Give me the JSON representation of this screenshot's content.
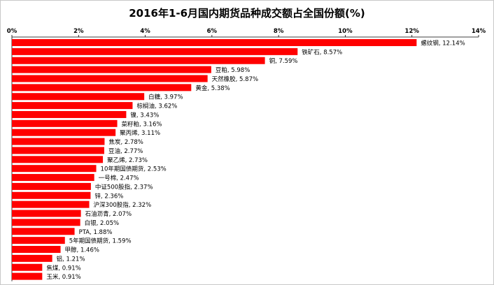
{
  "chart_data": {
    "type": "bar",
    "orientation": "horizontal",
    "title": "2016年1-6月国内期货品种成交额占全国份额(%)",
    "xlim": [
      0,
      14
    ],
    "x_ticks": [
      "0%",
      "2%",
      "4%",
      "6%",
      "8%",
      "10%",
      "12%",
      "14%"
    ],
    "x_axis_position": "top",
    "grid": false,
    "color": "#ff0000",
    "categories": [
      "螺纹钢",
      "铁矿石",
      "铜",
      "豆粕",
      "天然橡胶",
      "黄金",
      "白糖",
      "棕榈油",
      "镍",
      "菜籽粕",
      "聚丙烯",
      "焦炭",
      "豆油",
      "聚乙烯",
      "10年期国债期货",
      "一号棉",
      "中证500股指",
      "锌",
      "沪深300股指",
      "石油沥青",
      "白银",
      "PTA",
      "5年期国债期货",
      "甲醇",
      "铝",
      "焦煤",
      "玉米"
    ],
    "values": [
      12.14,
      8.57,
      7.59,
      5.98,
      5.87,
      5.38,
      3.97,
      3.62,
      3.43,
      3.16,
      3.11,
      2.78,
      2.77,
      2.73,
      2.53,
      2.47,
      2.37,
      2.36,
      2.32,
      2.07,
      2.05,
      1.88,
      1.59,
      1.46,
      1.21,
      0.91,
      0.91
    ],
    "labels": [
      "螺纹钢, 12.14%",
      "铁矿石, 8.57%",
      "铜, 7.59%",
      "豆粕, 5.98%",
      "天然橡胶, 5.87%",
      "黄金, 5.38%",
      "白糖, 3.97%",
      "棕榈油, 3.62%",
      "镍, 3.43%",
      "菜籽粕, 3.16%",
      "聚丙烯, 3.11%",
      "焦炭, 2.78%",
      "豆油, 2.77%",
      "聚乙烯, 2.73%",
      "10年期国债期货, 2.53%",
      "一号棉, 2.47%",
      "中证500股指, 2.37%",
      "锌, 2.36%",
      "沪深300股指, 2.32%",
      "石油沥青, 2.07%",
      "白银, 2.05%",
      "PTA, 1.88%",
      "5年期国债期货, 1.59%",
      "甲醇, 1.46%",
      "铝, 1.21%",
      "焦煤, 0.91%",
      "玉米, 0.91%"
    ]
  }
}
